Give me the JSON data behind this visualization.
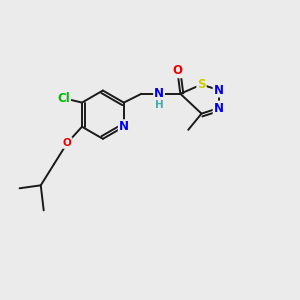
{
  "background_color": "#ebebeb",
  "bond_color": "#1a1a1a",
  "atom_colors": {
    "Cl": "#00bb00",
    "N": "#0000ee",
    "NH": "#0000ee",
    "H": "#44aaaa",
    "O": "#ee0000",
    "S": "#cccc00",
    "C": "#1a1a1a"
  },
  "figsize": [
    3.0,
    3.0
  ],
  "dpi": 100
}
